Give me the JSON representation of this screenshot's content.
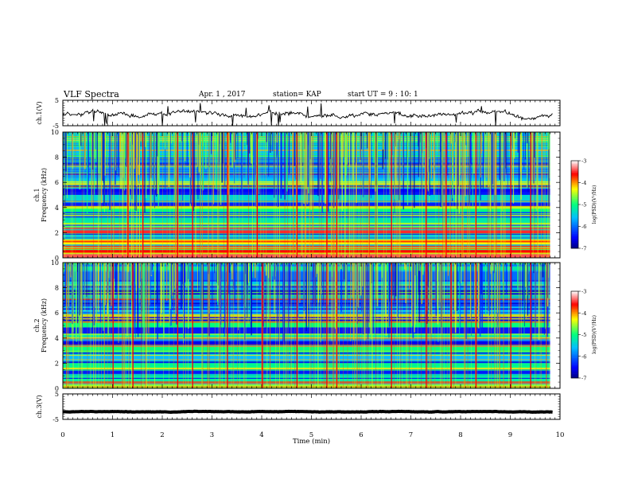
{
  "header": {
    "title": "VLF Spectra",
    "date": "Apr. 1 , 2017",
    "station": "station= KAP",
    "start": "start UT = 9 : 10: 1"
  },
  "chart_data": [
    {
      "type": "line",
      "name": "ch1-waveform",
      "ylabel": "ch.1(V)",
      "ylim": [
        -5,
        5
      ],
      "yticks": [
        "5",
        "-5"
      ],
      "xlim": [
        0,
        10
      ],
      "color": "#000000",
      "waveform": {
        "mean": -0.5,
        "amplitude": 1.6,
        "spikes_every_min": 0.8
      }
    },
    {
      "type": "heatmap",
      "name": "ch1-spectrogram",
      "ylabel": "ch.1 Frequency (kHz)",
      "ylim": [
        0,
        10
      ],
      "yticks": [
        "0",
        "2",
        "4",
        "6",
        "8",
        "10"
      ],
      "xlim": [
        0,
        10
      ],
      "data_end_min": 9.8,
      "bands_khz": [
        {
          "f": 0.2,
          "level": -3.4
        },
        {
          "f": 0.5,
          "level": -3.6
        },
        {
          "f": 0.8,
          "level": -3.8
        },
        {
          "f": 1.2,
          "level": -4.3
        },
        {
          "f": 1.7,
          "level": -4.8
        },
        {
          "f": 2.2,
          "level": -3.5
        },
        {
          "f": 2.6,
          "level": -4.6
        },
        {
          "f": 3.0,
          "level": -5.2
        },
        {
          "f": 3.4,
          "level": -6.2
        },
        {
          "f": 3.9,
          "level": -5.0
        },
        {
          "f": 4.3,
          "level": -6.4
        },
        {
          "f": 4.8,
          "level": -5.4
        },
        {
          "f": 5.3,
          "level": -6.5
        },
        {
          "f": 6.0,
          "level": -5.5
        },
        {
          "f": 6.6,
          "level": -5.8
        },
        {
          "f": 7.4,
          "level": -6.0
        },
        {
          "f": 8.5,
          "level": -5.6
        },
        {
          "f": 9.5,
          "level": -5.4
        }
      ],
      "spheric_times_min": [
        1.3,
        1.6,
        2.3,
        2.6,
        3.3,
        3.9,
        4.7,
        5.3,
        5.5,
        6.6,
        7.3,
        7.7,
        8.3,
        9.0,
        9.4
      ]
    },
    {
      "type": "heatmap",
      "name": "ch2-spectrogram",
      "ylabel": "ch.2 Frequency (kHz)",
      "ylim": [
        0,
        10
      ],
      "yticks": [
        "0",
        "2",
        "4",
        "6",
        "8",
        "10"
      ],
      "xlim": [
        0,
        10
      ],
      "data_end_min": 9.8,
      "bands_khz": [
        {
          "f": 0.3,
          "level": -4.6
        },
        {
          "f": 0.8,
          "level": -5.2
        },
        {
          "f": 1.3,
          "level": -6.4
        },
        {
          "f": 1.9,
          "level": -5.0
        },
        {
          "f": 2.4,
          "level": -5.6
        },
        {
          "f": 3.0,
          "level": -5.0
        },
        {
          "f": 3.6,
          "level": -6.6
        },
        {
          "f": 4.1,
          "level": -5.2
        },
        {
          "f": 4.6,
          "level": -6.4
        },
        {
          "f": 5.1,
          "level": -5.0
        },
        {
          "f": 5.6,
          "level": -6.6
        },
        {
          "f": 6.2,
          "level": -5.6
        },
        {
          "f": 6.8,
          "level": -6.2
        },
        {
          "f": 7.5,
          "level": -6.6
        },
        {
          "f": 8.2,
          "level": -5.5
        },
        {
          "f": 9.0,
          "level": -6.0
        },
        {
          "f": 9.6,
          "level": -5.2
        }
      ],
      "spheric_times_min": [
        1.0,
        1.4,
        2.3,
        2.6,
        3.3,
        4.0,
        4.7,
        5.3,
        5.5,
        6.6,
        7.3,
        7.8,
        8.3,
        9.0,
        9.4
      ]
    },
    {
      "type": "line",
      "name": "ch3-waveform",
      "ylabel": "ch.3(V)",
      "ylim": [
        -5,
        5
      ],
      "yticks": [
        "5",
        "-5"
      ],
      "xlim": [
        0,
        10
      ],
      "color": "#000000",
      "waveform": {
        "mean": -2.0,
        "amplitude": 0.15
      }
    }
  ],
  "xaxis": {
    "label": "Time (min)",
    "ticks": [
      "0",
      "1",
      "2",
      "3",
      "4",
      "5",
      "6",
      "7",
      "8",
      "9",
      "10"
    ]
  },
  "colorbar": {
    "label": "log(PSD)(V²/Hz)",
    "range": [
      -7,
      -3
    ],
    "ticks": [
      "-3",
      "-4",
      "-5",
      "-6",
      "-7"
    ],
    "colors": [
      "#000080",
      "#0000ff",
      "#00bfff",
      "#00ff80",
      "#ffff00",
      "#ff0000",
      "#ffffff"
    ]
  }
}
